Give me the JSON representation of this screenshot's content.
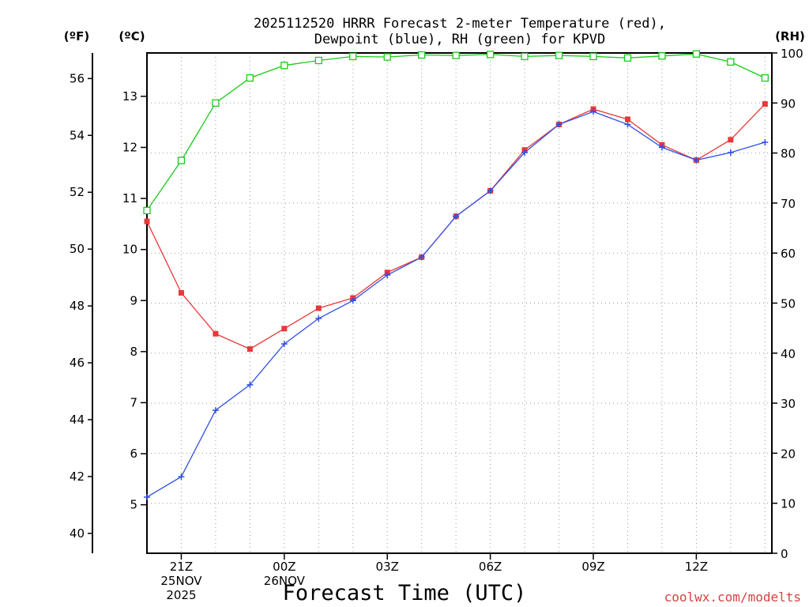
{
  "chart_data": {
    "type": "line",
    "title_line1": "2025112520 HRRR Forecast 2-meter Temperature (red),",
    "title_line2": "Dewpoint (blue), RH (green) for KPVD",
    "xlabel": "Forecast Time (UTC)",
    "credit": "coolwx.com/modelts",
    "x": [
      20,
      21,
      22,
      23,
      24,
      25,
      26,
      27,
      28,
      29,
      30,
      31,
      32,
      33,
      34,
      35,
      36,
      37,
      38
    ],
    "xlim": [
      20,
      38.2
    ],
    "x_ticks": [
      {
        "x": 21,
        "lines": [
          "21Z",
          "25NOV",
          "2025"
        ]
      },
      {
        "x": 24,
        "lines": [
          "00Z",
          "26NOV"
        ]
      },
      {
        "x": 27,
        "lines": [
          "03Z"
        ]
      },
      {
        "x": 30,
        "lines": [
          "06Z"
        ]
      },
      {
        "x": 33,
        "lines": [
          "09Z"
        ]
      },
      {
        "x": 36,
        "lines": [
          "12Z"
        ]
      }
    ],
    "axes": {
      "fahrenheit": {
        "label": "(ºF)",
        "range": [
          39.3,
          56.9
        ],
        "ticks": [
          40,
          42,
          44,
          46,
          48,
          50,
          52,
          54,
          56
        ]
      },
      "celsius": {
        "label": "(ºC)",
        "range": [
          4.05,
          13.85
        ],
        "ticks": [
          5,
          6,
          7,
          8,
          9,
          10,
          11,
          12,
          13
        ]
      },
      "rh": {
        "label": "(RH)",
        "range": [
          0,
          100
        ],
        "ticks": [
          0,
          10,
          20,
          30,
          40,
          50,
          60,
          70,
          80,
          90,
          100
        ]
      }
    },
    "series": [
      {
        "name": "Temperature",
        "units": "C",
        "color": "#e83838",
        "marker": "filled-square",
        "values": [
          10.55,
          9.15,
          8.35,
          8.05,
          8.45,
          8.85,
          9.05,
          9.55,
          9.85,
          10.65,
          11.15,
          11.95,
          12.45,
          12.75,
          12.55,
          12.05,
          11.75,
          12.15,
          12.85
        ]
      },
      {
        "name": "Dewpoint",
        "units": "C",
        "color": "#3050e8",
        "marker": "plus",
        "values": [
          5.15,
          5.55,
          6.85,
          7.35,
          8.15,
          8.65,
          9.0,
          9.5,
          9.85,
          10.65,
          11.15,
          11.9,
          12.45,
          12.7,
          12.45,
          12.0,
          11.75,
          11.9,
          12.1
        ]
      },
      {
        "name": "RH",
        "units": "%",
        "color": "#18cc18",
        "marker": "open-square",
        "values": [
          68.5,
          78.5,
          90.0,
          95.0,
          97.5,
          98.5,
          99.3,
          99.2,
          99.6,
          99.5,
          99.7,
          99.3,
          99.5,
          99.3,
          99.0,
          99.4,
          99.8,
          98.2,
          95.0
        ]
      }
    ]
  }
}
